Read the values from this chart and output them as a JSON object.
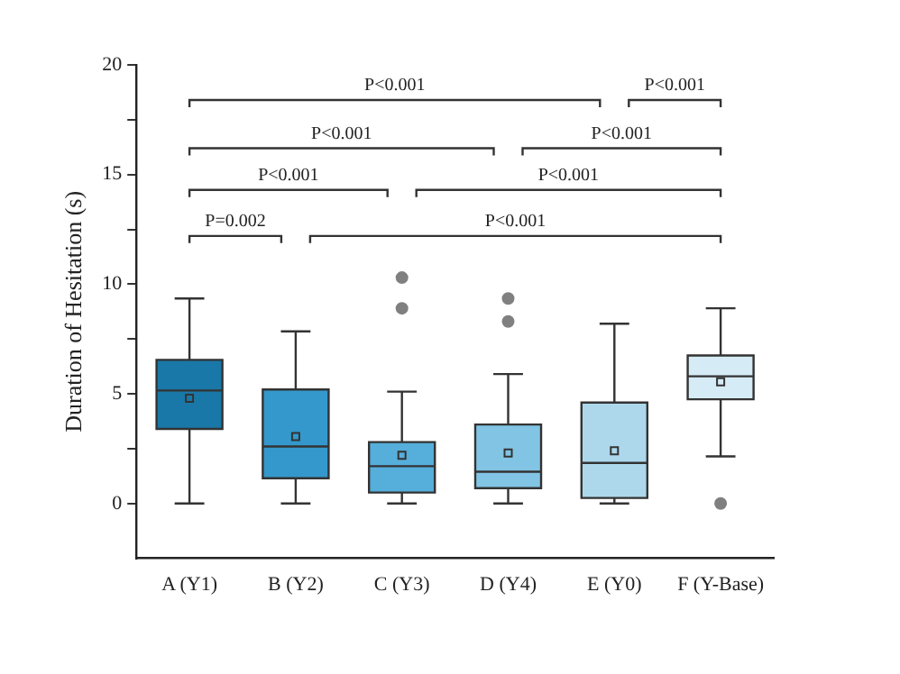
{
  "chart_data": {
    "type": "box",
    "ylabel": "Duration of Hesitation (s)",
    "categories": [
      "A (Y1)",
      "B (Y2)",
      "C (Y3)",
      "D (Y4)",
      "E (Y0)",
      "F (Y-Base)"
    ],
    "colors": [
      "#1a78a8",
      "#3498cc",
      "#56aedb",
      "#82c4e4",
      "#add8ec",
      "#d5ebf6"
    ],
    "boxes": [
      {
        "low": 0,
        "q1": 3.4,
        "median": 5.15,
        "q3": 6.55,
        "high": 9.35,
        "mean": 4.8
      },
      {
        "low": 0,
        "q1": 1.15,
        "median": 2.6,
        "q3": 5.2,
        "high": 7.85,
        "mean": 3.05
      },
      {
        "low": 0,
        "q1": 0.5,
        "median": 1.7,
        "q3": 2.8,
        "high": 5.1,
        "mean": 2.2,
        "outliers": [
          10.3,
          8.9
        ]
      },
      {
        "low": 0,
        "q1": 0.7,
        "median": 1.45,
        "q3": 3.6,
        "high": 5.9,
        "mean": 2.3,
        "outliers": [
          9.35,
          8.3
        ]
      },
      {
        "low": 0,
        "q1": 0.25,
        "median": 1.85,
        "q3": 4.6,
        "high": 8.2,
        "mean": 2.4
      },
      {
        "low": 2.15,
        "q1": 4.75,
        "median": 5.8,
        "q3": 6.75,
        "high": 8.9,
        "mean": 5.55,
        "outliers": [
          0
        ]
      }
    ],
    "ylim": [
      -2.5,
      20
    ],
    "yticks": [
      0,
      {
        "value": 2.5,
        "label": null
      },
      5,
      {
        "value": 7.5,
        "label": null
      },
      10,
      {
        "value": 12.5,
        "label": null
      },
      15,
      {
        "value": 17.5,
        "label": null
      },
      20
    ],
    "grid": false,
    "legend": false,
    "marker": "circle",
    "annotations": [
      "P<0.001",
      "P<0.001",
      "P<0.001",
      "P<0.001",
      "P<0.001",
      "P<0.001",
      "P=0.002",
      "P<0.001"
    ]
  }
}
